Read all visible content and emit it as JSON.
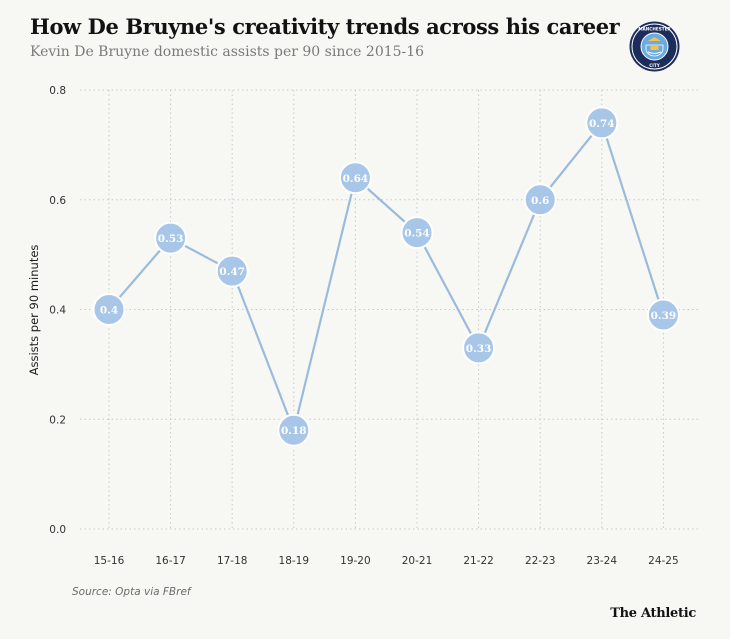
{
  "header": {
    "title": "How De Bruyne's creativity trends across his career",
    "subtitle": "Kevin De Bruyne domestic assists per 90 since 2015-16"
  },
  "logo": {
    "top_text": "MANCHESTER",
    "bottom_text": "CITY",
    "colors": {
      "ring": "#1c2c5b",
      "fill": "#6cabdd",
      "gold": "#f2c14e"
    }
  },
  "footer": {
    "source": "Source: Opta via FBref",
    "brand": "The Athletic"
  },
  "colors": {
    "line": "#9bbbdc",
    "marker": "#a8c7e8",
    "marker_stroke": "#ffffff",
    "marker_label": "#ffffff",
    "grid": "#c9c9c9",
    "axis_text": "#333333"
  },
  "chart_data": {
    "type": "line",
    "title": "How De Bruyne's creativity trends across his career",
    "subtitle": "Kevin De Bruyne domestic assists per 90 since 2015-16",
    "xlabel": "",
    "ylabel": "Assists per 90 minutes",
    "categories": [
      "15-16",
      "16-17",
      "17-18",
      "18-19",
      "19-20",
      "20-21",
      "21-22",
      "22-23",
      "23-24",
      "24-25"
    ],
    "series": [
      {
        "values": [
          0.4,
          0.53,
          0.47,
          0.18,
          0.64,
          0.54,
          0.33,
          0.6,
          0.74,
          0.39
        ]
      }
    ],
    "data_labels": [
      "0.4",
      "0.53",
      "0.47",
      "0.18",
      "0.64",
      "0.54",
      "0.33",
      "0.6",
      "0.74",
      "0.39"
    ],
    "ylim": [
      0,
      0.8
    ],
    "yticks": [
      "0.0",
      "0.2",
      "0.4",
      "0.6",
      "0.8"
    ],
    "grid": true,
    "grid_style": "dotted",
    "legend": "none"
  }
}
